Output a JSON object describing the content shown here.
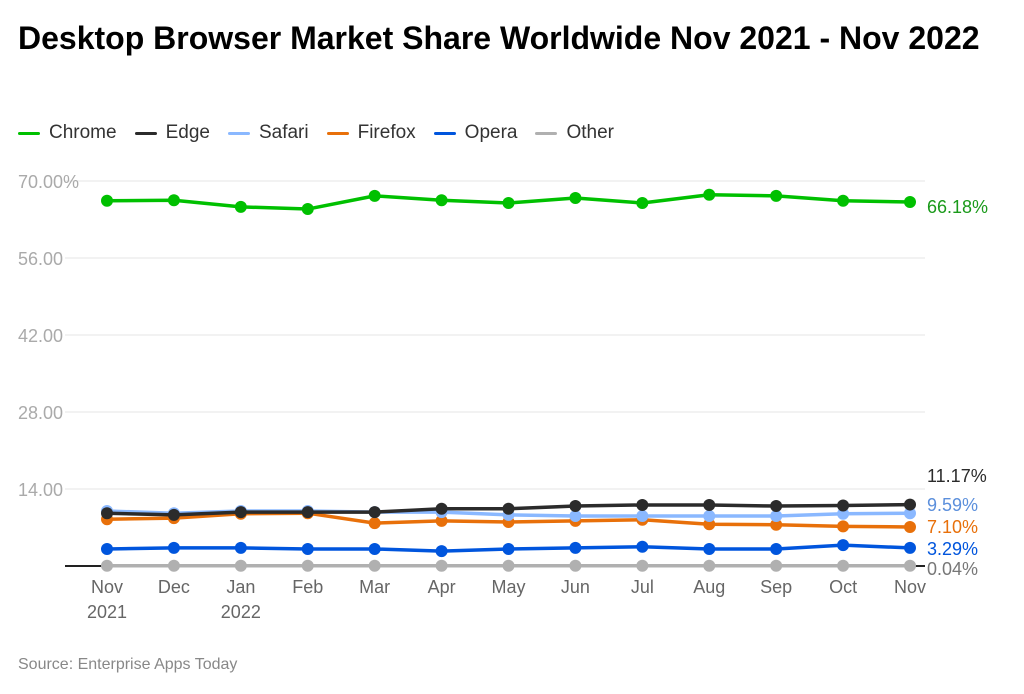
{
  "chart_data": {
    "type": "line",
    "title": "Desktop Browser Market Share Worldwide Nov 2021 - Nov 2022",
    "categories": [
      [
        "Nov",
        "2021"
      ],
      [
        "Dec",
        ""
      ],
      [
        "Jan",
        "2022"
      ],
      [
        "Feb",
        ""
      ],
      [
        "Mar",
        ""
      ],
      [
        "Apr",
        ""
      ],
      [
        "May",
        ""
      ],
      [
        "Jun",
        ""
      ],
      [
        "Jul",
        ""
      ],
      [
        "Aug",
        ""
      ],
      [
        "Sep",
        ""
      ],
      [
        "Oct",
        ""
      ],
      [
        "Nov",
        ""
      ]
    ],
    "ylim": [
      0,
      70
    ],
    "yticks": [
      "",
      "14.00",
      "28.00",
      "42.00",
      "56.00",
      "70.00%"
    ],
    "ytick_values": [
      0,
      14,
      28,
      42,
      56,
      70
    ],
    "grid": true,
    "legend_position": "top-left",
    "series": [
      {
        "name": "Chrome",
        "color": "#00c000",
        "end_label": "66.18%",
        "values": [
          66.4,
          66.5,
          65.3,
          64.9,
          67.3,
          66.5,
          66.0,
          66.9,
          66.0,
          67.5,
          67.3,
          66.4,
          66.18
        ]
      },
      {
        "name": "Edge",
        "color": "#2b2b2b",
        "end_label": "11.17%",
        "values": [
          9.6,
          9.3,
          9.8,
          9.8,
          9.8,
          10.4,
          10.4,
          10.9,
          11.1,
          11.1,
          10.9,
          11.0,
          11.17
        ]
      },
      {
        "name": "Safari",
        "color": "#8ab8ff",
        "end_label": "9.59%",
        "values": [
          10.0,
          9.6,
          10.0,
          10.0,
          9.8,
          9.8,
          9.3,
          9.1,
          9.1,
          9.1,
          9.1,
          9.5,
          9.59
        ]
      },
      {
        "name": "Firefox",
        "color": "#e8700a",
        "end_label": "7.10%",
        "values": [
          8.5,
          8.7,
          9.5,
          9.6,
          7.8,
          8.2,
          8.0,
          8.2,
          8.4,
          7.6,
          7.5,
          7.2,
          7.1
        ]
      },
      {
        "name": "Opera",
        "color": "#0055dd",
        "end_label": "3.29%",
        "values": [
          3.1,
          3.3,
          3.3,
          3.1,
          3.1,
          2.7,
          3.1,
          3.3,
          3.5,
          3.1,
          3.1,
          3.8,
          3.29
        ]
      },
      {
        "name": "Other",
        "color": "#b0b0b0",
        "end_label": "0.04%",
        "values": [
          0.04,
          0.04,
          0.04,
          0.04,
          0.04,
          0.04,
          0.04,
          0.04,
          0.04,
          0.04,
          0.04,
          0.04,
          0.04
        ]
      }
    ],
    "source": "Source: Enterprise Apps Today"
  }
}
